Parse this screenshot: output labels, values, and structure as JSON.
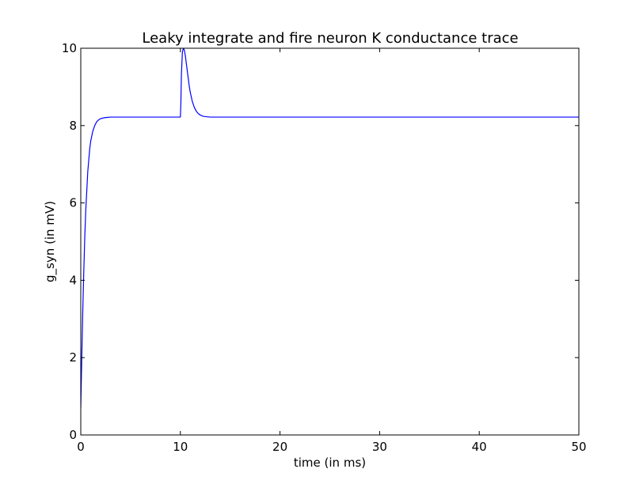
{
  "chart_data": {
    "type": "line",
    "title": "Leaky integrate and fire neuron K conductance trace",
    "xlabel": "time (in ms)",
    "ylabel": "g_syn (in mV)",
    "xlim": [
      0,
      50
    ],
    "ylim": [
      0,
      10
    ],
    "xticks": [
      0,
      10,
      20,
      30,
      40,
      50
    ],
    "yticks": [
      0,
      2,
      4,
      6,
      8,
      10
    ],
    "grid": false,
    "legend": "none",
    "line_color": "#0000ff",
    "series": [
      {
        "x": [
          0,
          0.1,
          0.2,
          0.3,
          0.4,
          0.5,
          0.6,
          0.7,
          0.8,
          0.9,
          1.0,
          1.2,
          1.4,
          1.6,
          1.8,
          2.0,
          2.3,
          2.6,
          3.0,
          3.5,
          4.0,
          5.0,
          7.0,
          9.0,
          10.0,
          10.05,
          10.1,
          10.2,
          10.3,
          10.4,
          10.5,
          10.6,
          10.7,
          10.8,
          10.9,
          11.0,
          11.2,
          11.4,
          11.6,
          11.8,
          12.0,
          12.3,
          12.6,
          13.0,
          13.5,
          14.0,
          16.0,
          20.0,
          30.0,
          40.0,
          50.0
        ],
        "y": [
          0.7,
          2.0,
          3.2,
          4.2,
          5.1,
          5.8,
          6.3,
          6.8,
          7.1,
          7.4,
          7.6,
          7.85,
          8.0,
          8.1,
          8.15,
          8.18,
          8.2,
          8.21,
          8.22,
          8.22,
          8.22,
          8.22,
          8.22,
          8.22,
          8.22,
          8.6,
          9.3,
          9.9,
          10.0,
          9.95,
          9.8,
          9.6,
          9.4,
          9.2,
          9.0,
          8.85,
          8.62,
          8.47,
          8.37,
          8.31,
          8.27,
          8.24,
          8.23,
          8.22,
          8.22,
          8.22,
          8.22,
          8.22,
          8.22,
          8.22,
          8.22
        ]
      }
    ]
  }
}
